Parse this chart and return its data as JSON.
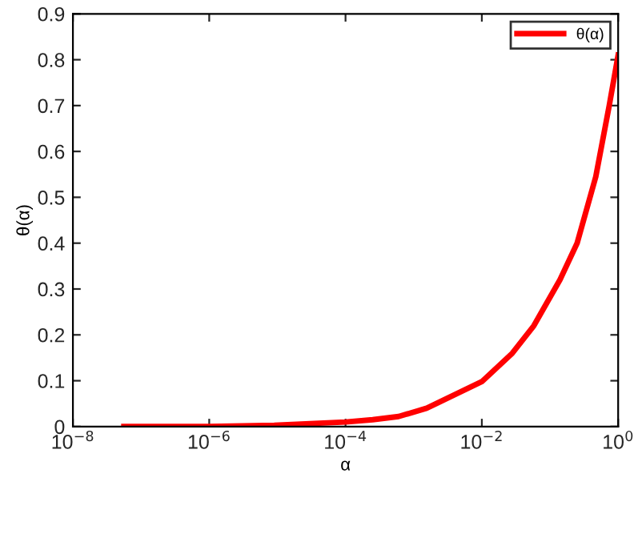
{
  "chart_data": {
    "type": "line",
    "xlabel": "α",
    "ylabel": "θ(α)",
    "log": "x",
    "x": [
      5.6e-08,
      1e-06,
      9e-06,
      0.0001,
      0.00025,
      0.0006,
      0.00155,
      0.01,
      0.028,
      0.058,
      0.14,
      0.25,
      0.47,
      0.74,
      1
    ],
    "series": [
      {
        "name": "θ(α)",
        "color": "#ff0000",
        "values": [
          0,
          0,
          0.003,
          0.01,
          0.015,
          0.022,
          0.04,
          0.098,
          0.16,
          0.22,
          0.32,
          0.4,
          0.545,
          0.7,
          0.81
        ]
      }
    ],
    "xlim": [
      1e-08,
      1
    ],
    "xticks": [
      {
        "value": 1e-08,
        "label": "10$^{−8}$"
      },
      {
        "value": 1e-06,
        "label": "10$^{−6}$"
      },
      {
        "value": 0.0001,
        "label": "10$^{−4}$"
      },
      {
        "value": 0.01,
        "label": "10$^{−2}$"
      },
      {
        "value": 1,
        "label": "10$^{0}$"
      }
    ],
    "ylim": [
      0,
      0.9
    ],
    "yticks": [
      0,
      0.1,
      0.2,
      0.3,
      0.4,
      0.5,
      0.6,
      0.7,
      0.8,
      0.9
    ],
    "legend": "top right",
    "grid": false,
    "marker": "none",
    "line_style": "solid"
  }
}
